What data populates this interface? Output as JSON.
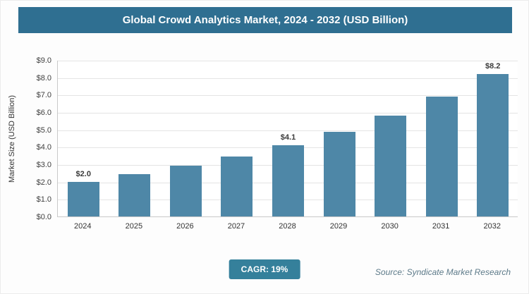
{
  "header": {
    "title": "Global Crowd Analytics Market, 2024 - 2032 (USD Billion)"
  },
  "chart_data": {
    "type": "bar",
    "title": "Global Crowd Analytics Market, 2024 - 2032 (USD Billion)",
    "categories": [
      "2024",
      "2025",
      "2026",
      "2027",
      "2028",
      "2029",
      "2030",
      "2031",
      "2032"
    ],
    "values": [
      2.0,
      2.45,
      2.9,
      3.45,
      4.1,
      4.85,
      5.8,
      6.9,
      8.2
    ],
    "data_labels": [
      "$2.0",
      "",
      "",
      "",
      "$4.1",
      "",
      "",
      "",
      "$8.2"
    ],
    "xlabel": "",
    "ylabel": "Market Size (USD Billion)",
    "ylim": [
      0,
      9
    ],
    "ytick_labels": [
      "$0.0",
      "$1.0",
      "$2.0",
      "$3.0",
      "$4.0",
      "$5.0",
      "$6.0",
      "$7.0",
      "$8.0",
      "$9.0"
    ],
    "grid": true,
    "legend_position": "none"
  },
  "footer": {
    "cagr_badge": "CAGR: 19%",
    "source": "Source: Syndicate Market Research"
  },
  "colors": {
    "title_bar": "#2f6f91",
    "badge": "#35809b",
    "bar": "#4e87a7"
  }
}
